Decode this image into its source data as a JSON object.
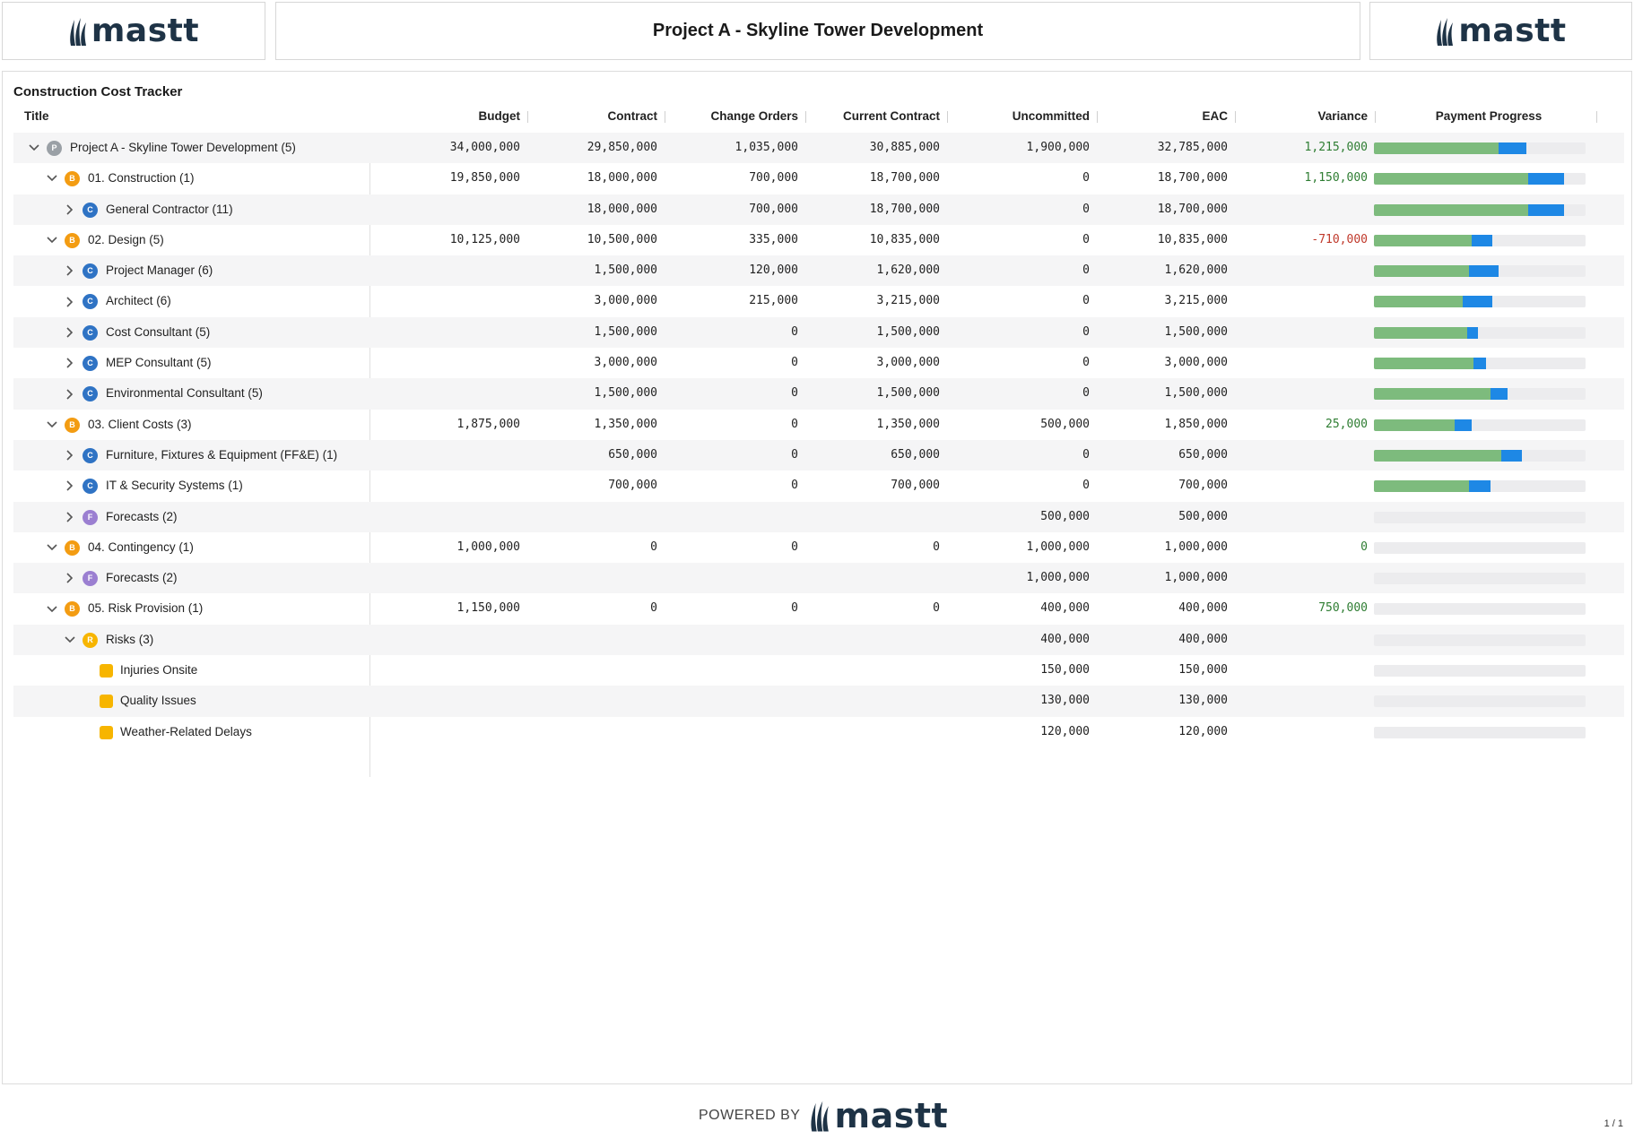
{
  "header": {
    "title": "Project A - Skyline Tower Development",
    "logo_text": "mastt"
  },
  "tracker": {
    "title": "Construction Cost Tracker",
    "columns": {
      "title": "Title",
      "budget": "Budget",
      "contract": "Contract",
      "change_orders": "Change Orders",
      "current_contract": "Current Contract",
      "uncommitted": "Uncommitted",
      "eac": "EAC",
      "variance": "Variance",
      "payment_progress": "Payment Progress"
    },
    "colors": {
      "P": "#9aa0a6",
      "B": "#f39c12",
      "C": "#2f73c4",
      "F": "#9b7fd1",
      "risk": "#f7b500",
      "bar_green": "#7dbb7d",
      "bar_blue": "#1e88e5"
    },
    "rows": [
      {
        "level": 0,
        "chevron": "down",
        "badge": "P",
        "title": "Project A - Skyline Tower Development",
        "count": "(5)",
        "budget": "34,000,000",
        "contract": "29,850,000",
        "change_orders": "1,035,000",
        "current_contract": "30,885,000",
        "uncommitted": "1,900,000",
        "eac": "32,785,000",
        "variance": "1,215,000",
        "variance_sign": "pos",
        "paid": 0.59,
        "progress": 0.72
      },
      {
        "level": 1,
        "chevron": "down",
        "badge": "B",
        "title": "01. Construction",
        "count": "(1)",
        "budget": "19,850,000",
        "contract": "18,000,000",
        "change_orders": "700,000",
        "current_contract": "18,700,000",
        "uncommitted": "0",
        "eac": "18,700,000",
        "variance": "1,150,000",
        "variance_sign": "pos",
        "paid": 0.73,
        "progress": 0.9
      },
      {
        "level": 2,
        "chevron": "right",
        "badge": "C",
        "title": "General Contractor",
        "count": "(11)",
        "budget": "",
        "contract": "18,000,000",
        "change_orders": "700,000",
        "current_contract": "18,700,000",
        "uncommitted": "0",
        "eac": "18,700,000",
        "variance": "",
        "variance_sign": "",
        "paid": 0.73,
        "progress": 0.9
      },
      {
        "level": 1,
        "chevron": "down",
        "badge": "B",
        "title": "02. Design",
        "count": "(5)",
        "budget": "10,125,000",
        "contract": "10,500,000",
        "change_orders": "335,000",
        "current_contract": "10,835,000",
        "uncommitted": "0",
        "eac": "10,835,000",
        "variance": "-710,000",
        "variance_sign": "neg",
        "paid": 0.46,
        "progress": 0.56
      },
      {
        "level": 2,
        "chevron": "right",
        "badge": "C",
        "title": "Project Manager",
        "count": "(6)",
        "budget": "",
        "contract": "1,500,000",
        "change_orders": "120,000",
        "current_contract": "1,620,000",
        "uncommitted": "0",
        "eac": "1,620,000",
        "variance": "",
        "variance_sign": "",
        "paid": 0.45,
        "progress": 0.59
      },
      {
        "level": 2,
        "chevron": "right",
        "badge": "C",
        "title": "Architect",
        "count": "(6)",
        "budget": "",
        "contract": "3,000,000",
        "change_orders": "215,000",
        "current_contract": "3,215,000",
        "uncommitted": "0",
        "eac": "3,215,000",
        "variance": "",
        "variance_sign": "",
        "paid": 0.42,
        "progress": 0.56
      },
      {
        "level": 2,
        "chevron": "right",
        "badge": "C",
        "title": "Cost Consultant",
        "count": "(5)",
        "budget": "",
        "contract": "1,500,000",
        "change_orders": "0",
        "current_contract": "1,500,000",
        "uncommitted": "0",
        "eac": "1,500,000",
        "variance": "",
        "variance_sign": "",
        "paid": 0.44,
        "progress": 0.49
      },
      {
        "level": 2,
        "chevron": "right",
        "badge": "C",
        "title": "MEP Consultant",
        "count": "(5)",
        "budget": "",
        "contract": "3,000,000",
        "change_orders": "0",
        "current_contract": "3,000,000",
        "uncommitted": "0",
        "eac": "3,000,000",
        "variance": "",
        "variance_sign": "",
        "paid": 0.47,
        "progress": 0.53
      },
      {
        "level": 2,
        "chevron": "right",
        "badge": "C",
        "title": "Environmental Consultant",
        "count": "(5)",
        "budget": "",
        "contract": "1,500,000",
        "change_orders": "0",
        "current_contract": "1,500,000",
        "uncommitted": "0",
        "eac": "1,500,000",
        "variance": "",
        "variance_sign": "",
        "paid": 0.55,
        "progress": 0.63
      },
      {
        "level": 1,
        "chevron": "down",
        "badge": "B",
        "title": "03. Client Costs",
        "count": "(3)",
        "budget": "1,875,000",
        "contract": "1,350,000",
        "change_orders": "0",
        "current_contract": "1,350,000",
        "uncommitted": "500,000",
        "eac": "1,850,000",
        "variance": "25,000",
        "variance_sign": "pos",
        "paid": 0.38,
        "progress": 0.46
      },
      {
        "level": 2,
        "chevron": "right",
        "badge": "C",
        "title": "Furniture, Fixtures & Equipment (FF&E)",
        "count": "(1)",
        "budget": "",
        "contract": "650,000",
        "change_orders": "0",
        "current_contract": "650,000",
        "uncommitted": "0",
        "eac": "650,000",
        "variance": "",
        "variance_sign": "",
        "paid": 0.6,
        "progress": 0.7
      },
      {
        "level": 2,
        "chevron": "right",
        "badge": "C",
        "title": "IT & Security Systems",
        "count": "(1)",
        "budget": "",
        "contract": "700,000",
        "change_orders": "0",
        "current_contract": "700,000",
        "uncommitted": "0",
        "eac": "700,000",
        "variance": "",
        "variance_sign": "",
        "paid": 0.45,
        "progress": 0.55
      },
      {
        "level": 2,
        "chevron": "right",
        "badge": "F",
        "title": "Forecasts",
        "count": "(2)",
        "budget": "",
        "contract": "",
        "change_orders": "",
        "current_contract": "",
        "uncommitted": "500,000",
        "eac": "500,000",
        "variance": "",
        "variance_sign": "",
        "paid": 0,
        "progress": 0
      },
      {
        "level": 1,
        "chevron": "down",
        "badge": "B",
        "title": "04. Contingency",
        "count": "(1)",
        "budget": "1,000,000",
        "contract": "0",
        "change_orders": "0",
        "current_contract": "0",
        "uncommitted": "1,000,000",
        "eac": "1,000,000",
        "variance": "0",
        "variance_sign": "pos",
        "paid": 0,
        "progress": 0
      },
      {
        "level": 2,
        "chevron": "right",
        "badge": "F",
        "title": "Forecasts",
        "count": "(2)",
        "budget": "",
        "contract": "",
        "change_orders": "",
        "current_contract": "",
        "uncommitted": "1,000,000",
        "eac": "1,000,000",
        "variance": "",
        "variance_sign": "",
        "paid": 0,
        "progress": 0
      },
      {
        "level": 1,
        "chevron": "down",
        "badge": "B",
        "title": "05. Risk Provision",
        "count": "(1)",
        "budget": "1,150,000",
        "contract": "0",
        "change_orders": "0",
        "current_contract": "0",
        "uncommitted": "400,000",
        "eac": "400,000",
        "variance": "750,000",
        "variance_sign": "pos",
        "paid": 0,
        "progress": 0
      },
      {
        "level": 2,
        "chevron": "down",
        "badge": "R",
        "title": "Risks",
        "count": "(3)",
        "budget": "",
        "contract": "",
        "change_orders": "",
        "current_contract": "",
        "uncommitted": "400,000",
        "eac": "400,000",
        "variance": "",
        "variance_sign": "",
        "paid": 0,
        "progress": 0
      },
      {
        "level": 3,
        "chevron": "",
        "badge": "risk",
        "title": "Injuries Onsite",
        "count": "",
        "budget": "",
        "contract": "",
        "change_orders": "",
        "current_contract": "",
        "uncommitted": "150,000",
        "eac": "150,000",
        "variance": "",
        "variance_sign": "",
        "paid": 0,
        "progress": 0
      },
      {
        "level": 3,
        "chevron": "",
        "badge": "risk",
        "title": "Quality Issues",
        "count": "",
        "budget": "",
        "contract": "",
        "change_orders": "",
        "current_contract": "",
        "uncommitted": "130,000",
        "eac": "130,000",
        "variance": "",
        "variance_sign": "",
        "paid": 0,
        "progress": 0
      },
      {
        "level": 3,
        "chevron": "",
        "badge": "risk",
        "title": "Weather-Related Delays",
        "count": "",
        "budget": "",
        "contract": "",
        "change_orders": "",
        "current_contract": "",
        "uncommitted": "120,000",
        "eac": "120,000",
        "variance": "",
        "variance_sign": "",
        "paid": 0,
        "progress": 0
      }
    ]
  },
  "footer": {
    "powered_by": "POWERED BY",
    "logo_text": "mastt",
    "page": "1 / 1"
  }
}
